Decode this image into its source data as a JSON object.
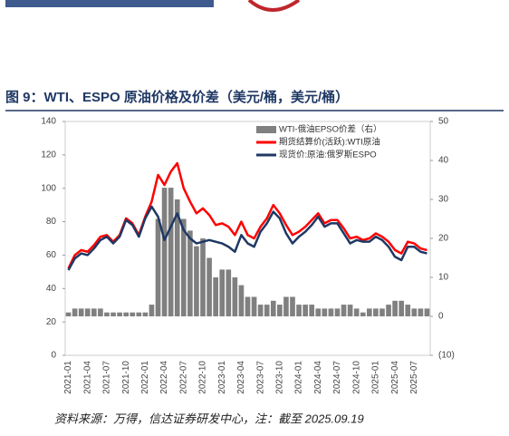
{
  "chart_data": {
    "type": "combo",
    "title": "图 9：WTI、ESPO 原油价格及价差（美元/桶，美元/桶）",
    "source": "资料来源：万得，信达证券研发中心，注：截至 2025.09.19",
    "categories": [
      "2021-01",
      null,
      null,
      "2021-04",
      null,
      null,
      "2021-07",
      null,
      null,
      "2021-10",
      null,
      null,
      "2022-01",
      null,
      null,
      "2022-04",
      null,
      null,
      "2022-07",
      null,
      null,
      "2022-10",
      null,
      null,
      "2023-01",
      null,
      null,
      "2023-04",
      null,
      null,
      "2023-07",
      null,
      null,
      "2023-10",
      null,
      null,
      "2024-01",
      null,
      null,
      "2024-04",
      null,
      null,
      "2024-07",
      null,
      null,
      "2024-10",
      null,
      null,
      "2025-01",
      null,
      null,
      "2025-04",
      null,
      null,
      "2025-07",
      null,
      null
    ],
    "ylim": [
      0,
      140
    ],
    "yticks": [
      0,
      20,
      40,
      60,
      80,
      100,
      120,
      140
    ],
    "y2lim": [
      -10,
      50
    ],
    "y2ticks": [
      {
        "value": -10,
        "label": "(10)"
      },
      0,
      10,
      20,
      30,
      40,
      50
    ],
    "y2tick_negative_color": "#ff0000",
    "series": [
      {
        "name": "WTI-俄油EPSO价差（右）",
        "type": "bar",
        "axis": "y2",
        "color": "#808080",
        "values": [
          1,
          2,
          2,
          2,
          2,
          2,
          1,
          1,
          1,
          1,
          1,
          1,
          1,
          3,
          25,
          33,
          33,
          30,
          25,
          22,
          18,
          20,
          15,
          10,
          12,
          12,
          10,
          8,
          5,
          5,
          3,
          3,
          4,
          3,
          5,
          5,
          3,
          3,
          3,
          2,
          2,
          2,
          2,
          3,
          3,
          2,
          1,
          2,
          2,
          2,
          3,
          4,
          4,
          3,
          2,
          2,
          2
        ]
      },
      {
        "name": "期货结算价(活跃):WTI原油",
        "type": "line",
        "color": "#ff0000",
        "values": [
          52,
          60,
          63,
          62,
          66,
          71,
          72,
          68,
          72,
          82,
          79,
          72,
          83,
          92,
          108,
          102,
          110,
          115,
          100,
          92,
          85,
          88,
          84,
          78,
          79,
          77,
          72,
          80,
          72,
          70,
          77,
          82,
          90,
          85,
          78,
          72,
          74,
          77,
          81,
          85,
          79,
          81,
          81,
          76,
          70,
          71,
          69,
          70,
          73,
          71,
          68,
          63,
          61,
          68,
          67,
          64,
          63
        ]
      },
      {
        "name": "现货价:原油:俄罗斯ESPO",
        "type": "line",
        "color": "#1f3864",
        "values": [
          51,
          58,
          61,
          60,
          64,
          69,
          71,
          67,
          71,
          81,
          78,
          71,
          82,
          89,
          83,
          69,
          77,
          85,
          75,
          70,
          67,
          68,
          69,
          68,
          67,
          65,
          62,
          72,
          67,
          65,
          74,
          79,
          86,
          82,
          73,
          67,
          71,
          74,
          78,
          83,
          77,
          79,
          79,
          73,
          67,
          69,
          68,
          68,
          71,
          69,
          65,
          59,
          57,
          65,
          65,
          62,
          61
        ]
      }
    ]
  }
}
